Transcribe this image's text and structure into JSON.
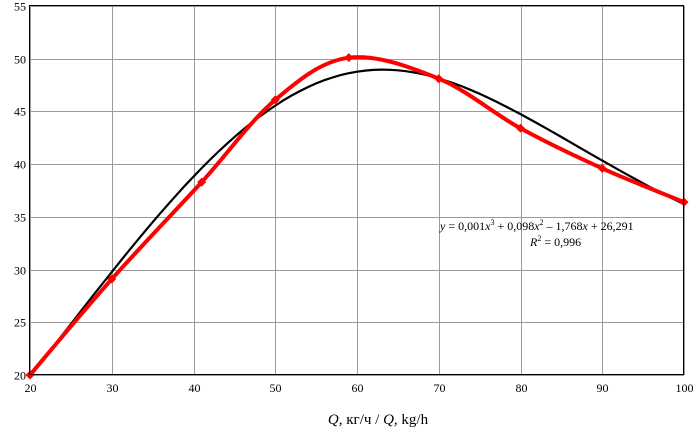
{
  "chart_data": {
    "type": "line",
    "xlabel_prefix": "Q",
    "xlabel_mid": ", кг/ч / ",
    "xlabel_q2": "Q",
    "xlabel_suffix": ", kg/h",
    "xlim": [
      20,
      100
    ],
    "ylim": [
      20,
      55
    ],
    "x_ticks": [
      20,
      30,
      40,
      50,
      60,
      70,
      80,
      90,
      100
    ],
    "y_ticks": [
      20,
      25,
      30,
      35,
      40,
      45,
      50,
      55
    ],
    "grid": true,
    "series": [
      {
        "type": "line+marker",
        "color": "#ff0000",
        "marker": "diamond",
        "x": [
          20,
          30,
          41,
          50,
          59,
          70,
          80,
          90,
          100
        ],
        "y": [
          20.0,
          29.1,
          38.3,
          46.1,
          50.1,
          48.1,
          43.4,
          39.6,
          36.4
        ]
      },
      {
        "type": "trendline",
        "color": "#000000",
        "equation": {
          "y": "y",
          "eq": " =  0,001",
          "x3": "x",
          "sup3": "3",
          "t2": " + 0,098",
          "x2": "x",
          "sup2": "2",
          "t3": " – 1,768",
          "x1": "x",
          "t4": " + 26,291",
          "r": "R",
          "rsup": "2",
          "rval": " = 0,996"
        }
      }
    ]
  }
}
